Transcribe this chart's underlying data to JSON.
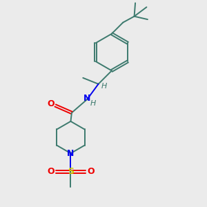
{
  "bg_color": "#ebebeb",
  "bond_color": "#3d7a6e",
  "n_color": "#0000ee",
  "o_color": "#ee0000",
  "s_color": "#cccc00",
  "bond_width": 1.4,
  "dbo": 0.07,
  "figsize": [
    3.0,
    3.0
  ],
  "dpi": 100,
  "xlim": [
    0,
    10
  ],
  "ylim": [
    0,
    10
  ]
}
